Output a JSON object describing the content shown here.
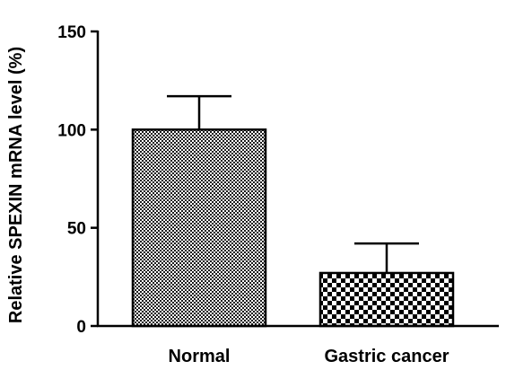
{
  "chart_data": {
    "type": "bar",
    "categories": [
      "Normal",
      "Gastric cancer"
    ],
    "values": [
      100,
      27
    ],
    "errors": [
      17,
      15
    ],
    "title": "",
    "xlabel": "",
    "ylabel": "Relative SPEXIN mRNA level (%)",
    "ylim": [
      0,
      150
    ],
    "yticks": [
      0,
      50,
      100,
      150
    ],
    "ytick_labels": [
      "0",
      "50",
      "100",
      "150"
    ],
    "grid": false,
    "bar_fill": [
      "fine-checker",
      "coarse-checker"
    ]
  }
}
